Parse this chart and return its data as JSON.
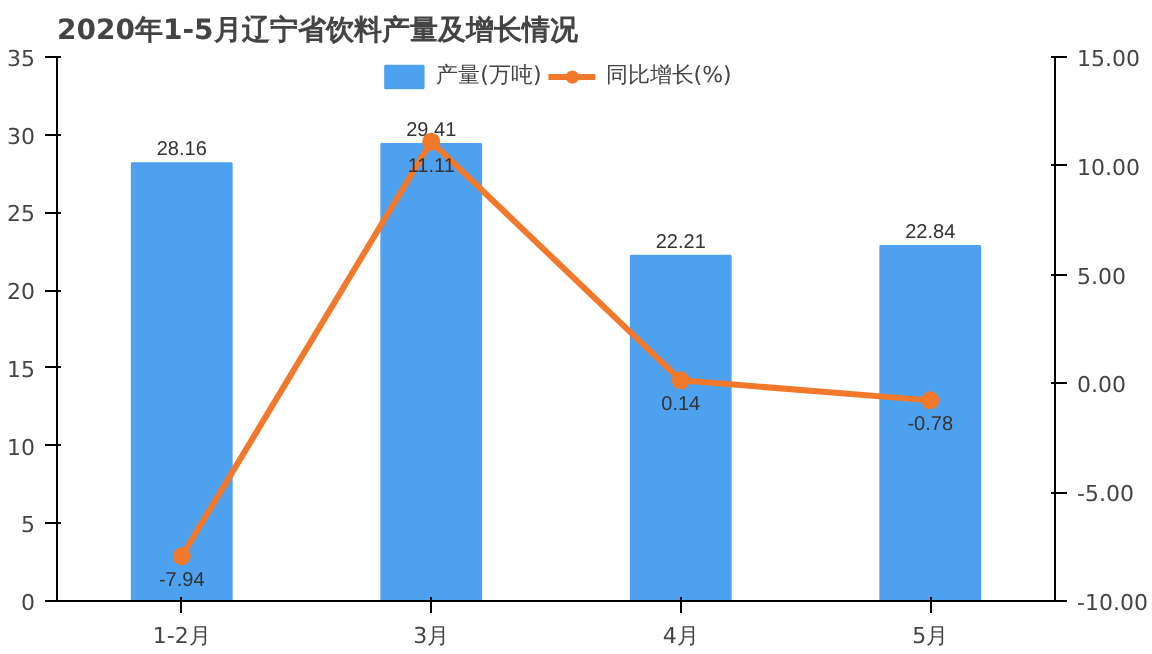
{
  "chart_data": {
    "type": "bar",
    "title": "2020年1-5月辽宁省饮料产量及增长情况",
    "categories": [
      "1-2月",
      "3月",
      "4月",
      "5月"
    ],
    "series": [
      {
        "name": "产量(万吨)",
        "color": "#4ea1ef",
        "values": [
          28.16,
          29.41,
          22.21,
          22.84
        ]
      },
      {
        "name": "同比增长(%)",
        "color": "#f2782b",
        "type": "line",
        "axis": "y2",
        "marker": "circle",
        "values": [
          -7.94,
          11.11,
          0.14,
          -0.78
        ]
      }
    ],
    "ylim": [
      0,
      35
    ],
    "yticks": [
      0,
      5,
      10,
      15,
      20,
      25,
      30,
      35
    ],
    "y2lim": [
      -10,
      15
    ],
    "y2ticks": [
      {
        "value": -10,
        "label": "-10.00"
      },
      {
        "value": -5,
        "label": "-5.00"
      },
      {
        "value": 0,
        "label": "0.00"
      },
      {
        "value": 5,
        "label": "5.00"
      },
      {
        "value": 10,
        "label": "10.00"
      },
      {
        "value": 15,
        "label": "15.00"
      }
    ],
    "data_labels": true,
    "legend": "top",
    "grid": false
  }
}
